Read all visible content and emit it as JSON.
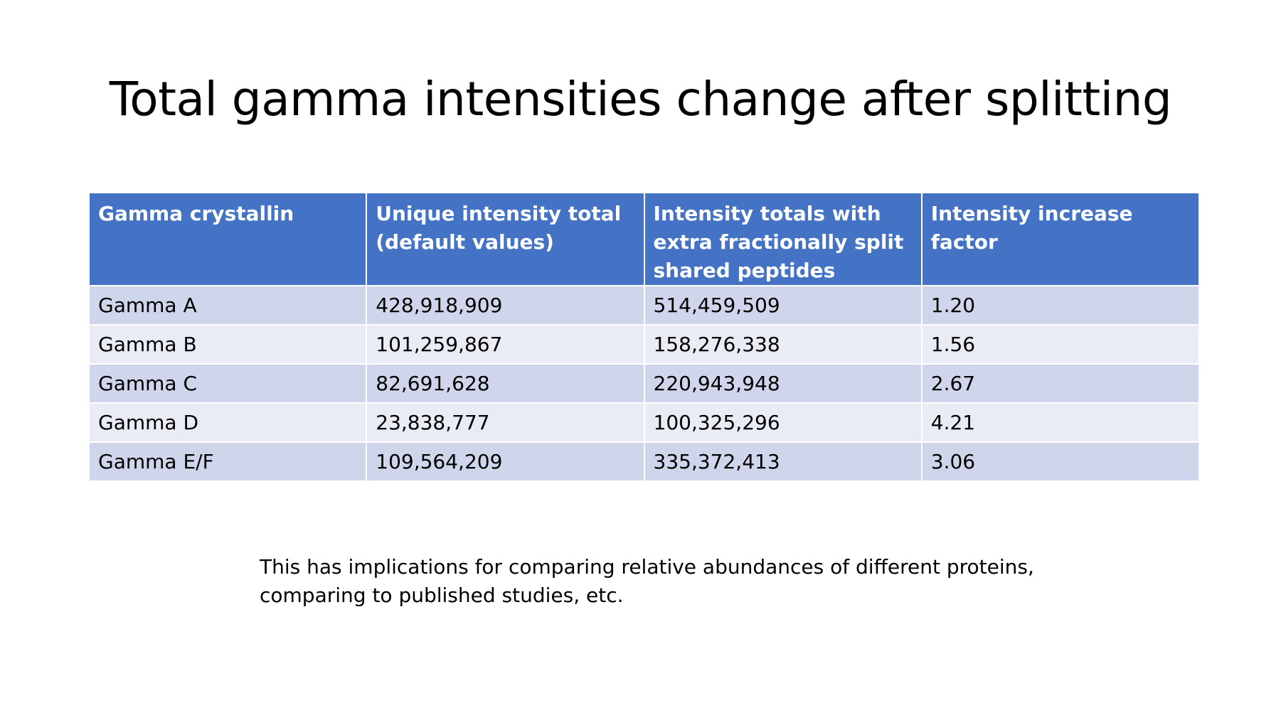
{
  "colors": {
    "header_bg": "#4472c4",
    "header_text": "#ffffff",
    "row_odd": "#cfd5ea",
    "row_even": "#e9ebf5"
  },
  "slide": {
    "title": "Total gamma intensities change after splitting"
  },
  "table": {
    "headers": [
      "Gamma crystallin",
      "Unique intensity total (default values)",
      "Intensity totals with extra fractionally split shared peptides",
      "Intensity increase factor"
    ],
    "rows": [
      [
        "Gamma A",
        "428,918,909",
        "514,459,509",
        "1.20"
      ],
      [
        "Gamma B",
        "101,259,867",
        "158,276,338",
        "1.56"
      ],
      [
        "Gamma C",
        "82,691,628",
        "220,943,948",
        "2.67"
      ],
      [
        "Gamma D",
        "23,838,777",
        "100,325,296",
        "4.21"
      ],
      [
        "Gamma E/F",
        "109,564,209",
        "335,372,413",
        "3.06"
      ]
    ]
  },
  "footnote": {
    "line1": "This has implications for comparing relative abundances of different proteins,",
    "line2": "comparing to published studies, etc."
  }
}
